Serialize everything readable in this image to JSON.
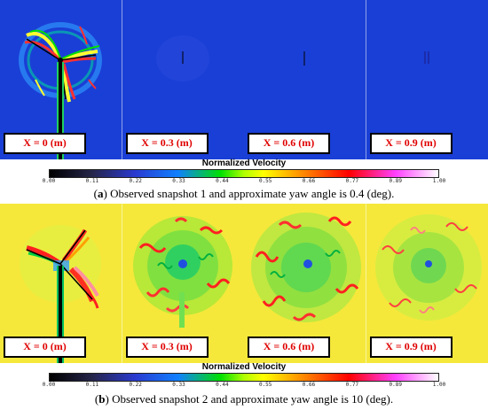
{
  "colorbar": {
    "title": "Normalized Velocity",
    "ticks": [
      "0.00",
      "0.11",
      "0.22",
      "0.33",
      "0.44",
      "0.55",
      "0.66",
      "0.77",
      "0.89",
      "1.00"
    ],
    "colors": [
      "#000000",
      "#25254a",
      "#2a3ad0",
      "#1080ff",
      "#00e000",
      "#ffff00",
      "#ff8000",
      "#ff0000",
      "#ff40ff",
      "#ffffff"
    ]
  },
  "panel_a": {
    "background_color": "#1a3fd6",
    "labels": [
      "X = 0 (m)",
      "X = 0.3 (m)",
      "X = 0.6 (m)",
      "X = 0.9 (m)"
    ],
    "caption_letter": "a",
    "caption_text": " Observed snapshot 1 and approximate yaw angle is 0.4 (deg)."
  },
  "panel_b": {
    "background_color": "#f5e83a",
    "labels": [
      "X = 0 (m)",
      "X = 0.3 (m)",
      "X = 0.6 (m)",
      "X = 0.9 (m)"
    ],
    "caption_letter": "b",
    "caption_text": " Observed snapshot 2 and approximate yaw angle is 10 (deg)."
  }
}
